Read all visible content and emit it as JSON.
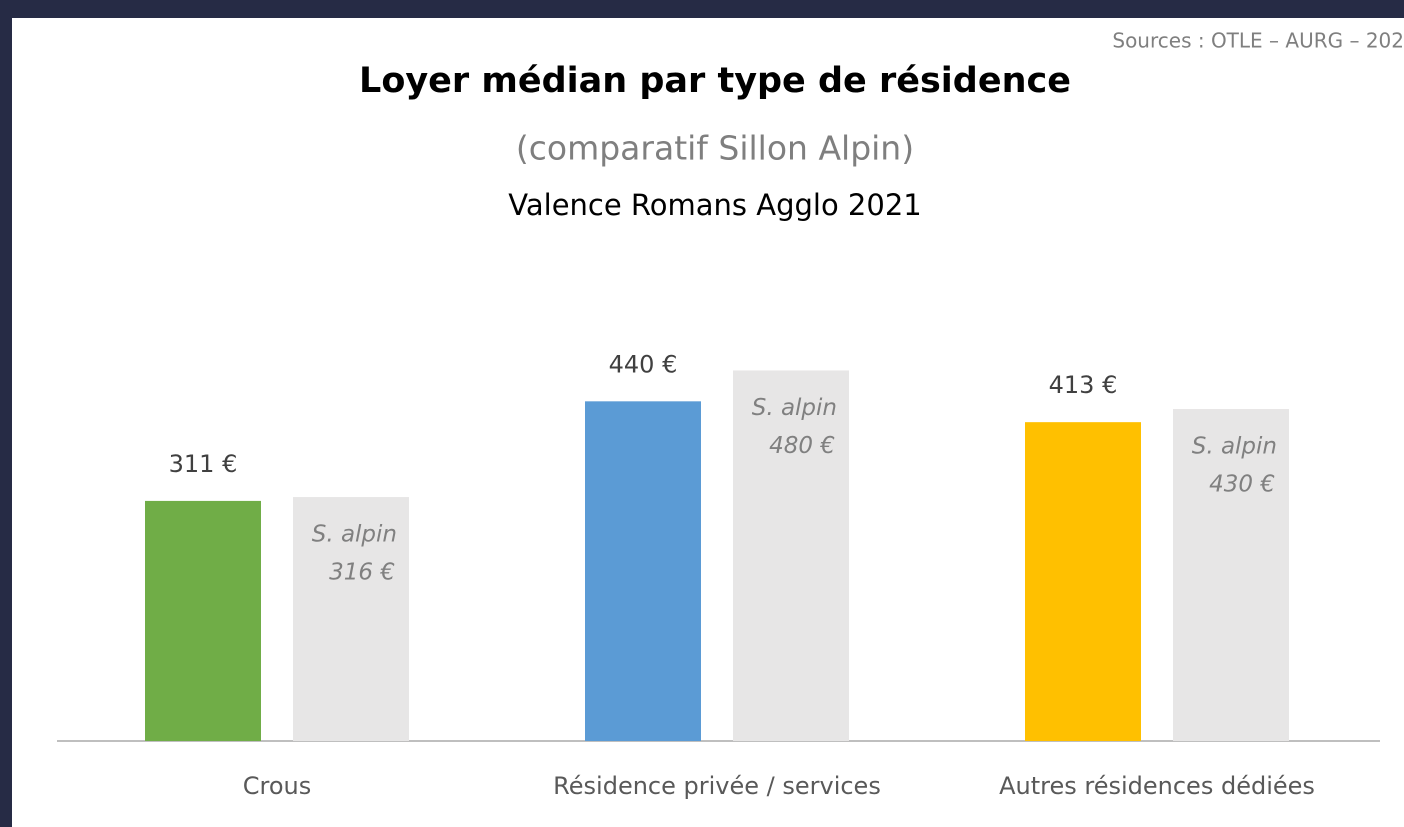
{
  "chart_data": {
    "type": "bar",
    "title": "Loyer médian par type de résidence",
    "subtitle": "(comparatif Sillon Alpin)",
    "subtitle2": "Valence Romans Agglo 2021",
    "source": "Sources : OTLE – AURG – 202",
    "categories": [
      "Crous",
      "Résidence privée / services",
      "Autres résidences dédiées"
    ],
    "series": [
      {
        "colors": [
          "#70ad47",
          "#5b9bd5",
          "#ffc000"
        ],
        "values": [
          311,
          440,
          413
        ],
        "value_labels": [
          "311 €",
          "440 €",
          "413 €"
        ]
      },
      {
        "name": "S. alpin",
        "color": "#e7e6e6",
        "values": [
          316,
          480,
          430
        ],
        "value_labels": [
          "316 €",
          "480 €",
          "430 €"
        ]
      }
    ],
    "ylim": [
      0,
      500
    ]
  }
}
